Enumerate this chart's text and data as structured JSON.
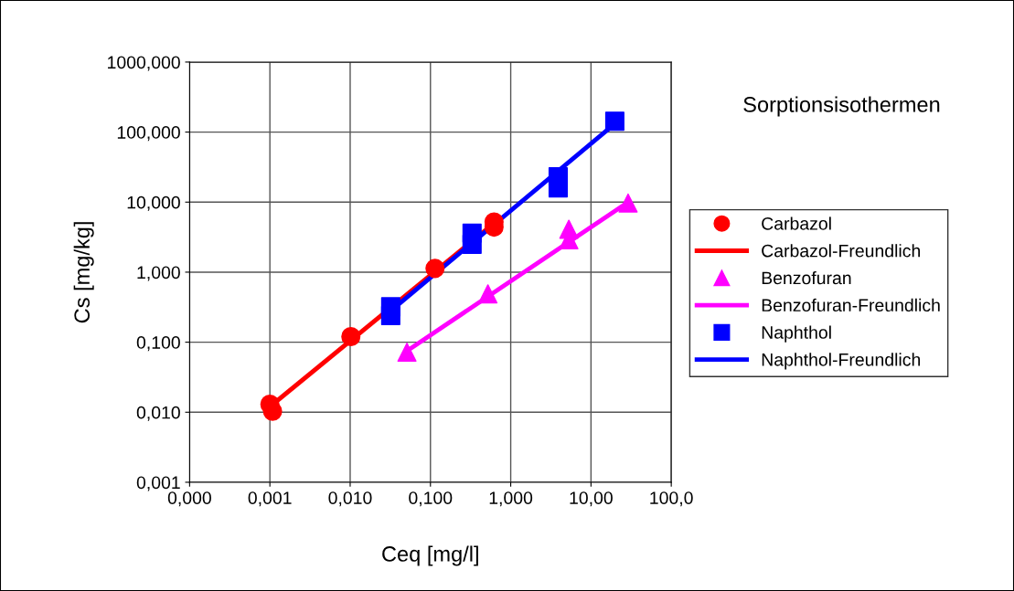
{
  "chart_data": {
    "type": "scatter",
    "title": "Sorptionsisothermen",
    "xlabel": "Ceq [mg/l]",
    "ylabel": "Cs [mg/kg]",
    "log": "xy",
    "grid": true,
    "legend": "right",
    "xlim": [
      0.0001,
      100
    ],
    "xticks": [
      {
        "value": 0.0001,
        "label": "0,000"
      },
      {
        "value": 0.001,
        "label": "0,001"
      },
      {
        "value": 0.01,
        "label": "0,010"
      },
      {
        "value": 0.1,
        "label": "0,100"
      },
      {
        "value": 1,
        "label": "1,000"
      },
      {
        "value": 10,
        "label": "10,00"
      },
      {
        "value": 100,
        "label": "100,0"
      }
    ],
    "ylim": [
      0.001,
      1000
    ],
    "yticks": [
      {
        "value": 0.001,
        "label": "0,001"
      },
      {
        "value": 0.01,
        "label": "0,010"
      },
      {
        "value": 0.1,
        "label": "0,100"
      },
      {
        "value": 1,
        "label": "1,000"
      },
      {
        "value": 10,
        "label": "10,000"
      },
      {
        "value": 100,
        "label": "100,000"
      },
      {
        "value": 1000,
        "label": "1000,000"
      }
    ],
    "series": [
      {
        "name": "Carbazol",
        "marker": "circle",
        "color": "#ff0000",
        "x": [
          0.001,
          0.00108,
          0.0102,
          0.114,
          0.62,
          0.62
        ],
        "values": [
          0.013,
          0.0103,
          0.12,
          1.13,
          5.2,
          4.4
        ]
      },
      {
        "name": "Carbazol-Freundlich",
        "type": "line",
        "marker": "none",
        "color": "#ff0000",
        "x": [
          0.001,
          0.62
        ],
        "values": [
          0.012,
          5.0
        ]
      },
      {
        "name": "Benzofuran",
        "marker": "triangle",
        "color": "#ff00ff",
        "x": [
          0.051,
          0.52,
          5.3,
          5.3,
          29
        ],
        "values": [
          0.072,
          0.49,
          4.1,
          2.9,
          9.7
        ]
      },
      {
        "name": "Benzofuran-Freundlich",
        "type": "line",
        "marker": "none",
        "color": "#ff00ff",
        "x": [
          0.051,
          29
        ],
        "values": [
          0.075,
          10
        ]
      },
      {
        "name": "Naphthol",
        "marker": "square",
        "color": "#0000ff",
        "x": [
          0.032,
          0.032,
          0.33,
          0.33,
          3.9,
          3.9,
          19.8
        ],
        "values": [
          0.32,
          0.24,
          3.6,
          2.5,
          23,
          16,
          143
        ]
      },
      {
        "name": "Naphthol-Freundlich",
        "type": "line",
        "marker": "none",
        "color": "#0000ff",
        "x": [
          0.032,
          19.5
        ],
        "values": [
          0.28,
          130
        ]
      }
    ]
  }
}
